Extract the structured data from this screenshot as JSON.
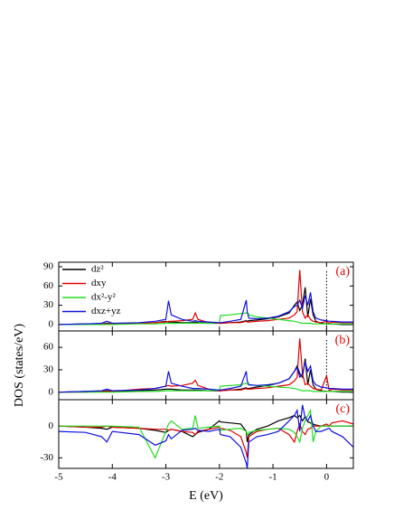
{
  "chart_data": [
    {
      "type": "line",
      "label": "(a)",
      "xlim": [
        -5,
        0.5
      ],
      "xticks": [
        -5,
        -4,
        -3,
        -2,
        -1,
        0
      ],
      "ylim": [
        -10,
        97
      ],
      "yticks": [
        0,
        30,
        60,
        90
      ],
      "fermi_level": 0,
      "x": [
        -5,
        -4.5,
        -4.2,
        -4.1,
        -4,
        -3.5,
        -3.2,
        -3,
        -2.95,
        -2.9,
        -2.7,
        -2.5,
        -2.45,
        -2.4,
        -2.2,
        -2,
        -1.98,
        -1.8,
        -1.6,
        -1.5,
        -1.48,
        -1.45,
        -1.3,
        -1.1,
        -0.9,
        -0.7,
        -0.6,
        -0.55,
        -0.5,
        -0.45,
        -0.4,
        -0.35,
        -0.3,
        -0.25,
        -0.2,
        -0.1,
        0,
        0.05,
        0.1,
        0.3,
        0.5
      ],
      "series": [
        {
          "name": "dz²",
          "color": "#000000",
          "values": [
            0,
            1,
            1,
            2,
            1,
            2,
            3,
            5,
            4,
            4,
            3,
            3,
            4,
            3,
            2,
            2,
            2,
            3,
            4,
            6,
            5,
            6,
            7,
            9,
            12,
            18,
            30,
            35,
            22,
            30,
            58,
            12,
            40,
            15,
            5,
            2,
            1,
            1,
            1,
            0,
            0
          ]
        },
        {
          "name": "dxy",
          "color": "#e00000",
          "values": [
            0,
            0,
            1,
            1,
            1,
            2,
            3,
            4,
            5,
            5,
            6,
            8,
            18,
            8,
            3,
            2,
            2,
            3,
            3,
            5,
            4,
            4,
            5,
            6,
            8,
            10,
            15,
            20,
            85,
            20,
            10,
            15,
            8,
            5,
            4,
            3,
            5,
            2,
            4,
            3,
            3
          ]
        },
        {
          "name": "dx²-y²",
          "color": "#22dd22",
          "values": [
            0,
            0,
            0,
            0,
            0,
            1,
            1,
            2,
            2,
            2,
            2,
            2,
            2,
            2,
            2,
            3,
            14,
            15,
            17,
            18,
            18,
            15,
            12,
            10,
            8,
            6,
            5,
            4,
            3,
            2,
            2,
            2,
            2,
            1,
            1,
            1,
            1,
            1,
            1,
            1,
            1
          ]
        },
        {
          "name": "dxz+yz",
          "color": "#1010e0",
          "values": [
            0,
            1,
            2,
            5,
            2,
            3,
            5,
            8,
            37,
            15,
            8,
            5,
            6,
            5,
            4,
            3,
            3,
            5,
            8,
            38,
            20,
            10,
            9,
            10,
            13,
            20,
            28,
            30,
            38,
            25,
            45,
            30,
            50,
            20,
            10,
            7,
            6,
            5,
            5,
            4,
            4
          ]
        }
      ]
    },
    {
      "type": "line",
      "label": "(b)",
      "y_label": "DOS (states/eV)",
      "xlim": [
        -5,
        0.5
      ],
      "xticks": [
        -5,
        -4,
        -3,
        -2,
        -1,
        0
      ],
      "ylim": [
        -10,
        82
      ],
      "yticks": [
        0,
        30,
        60
      ],
      "fermi_level": 0,
      "x": [
        -5,
        -4.5,
        -4.2,
        -4.1,
        -4,
        -3.5,
        -3.2,
        -3,
        -2.95,
        -2.9,
        -2.7,
        -2.5,
        -2.45,
        -2.4,
        -2.2,
        -2,
        -1.98,
        -1.8,
        -1.6,
        -1.5,
        -1.48,
        -1.45,
        -1.3,
        -1.1,
        -0.9,
        -0.7,
        -0.6,
        -0.55,
        -0.5,
        -0.45,
        -0.4,
        -0.35,
        -0.3,
        -0.25,
        -0.2,
        -0.1,
        0,
        0.05,
        0.1,
        0.3,
        0.5
      ],
      "series": [
        {
          "color": "#000000",
          "values": [
            0,
            1,
            1,
            2,
            1,
            2,
            3,
            4,
            4,
            4,
            3,
            3,
            3,
            3,
            2,
            2,
            2,
            3,
            4,
            6,
            5,
            5,
            7,
            9,
            12,
            18,
            28,
            35,
            25,
            20,
            45,
            10,
            30,
            10,
            4,
            2,
            1,
            1,
            1,
            0,
            0
          ]
        },
        {
          "color": "#e00000",
          "values": [
            0,
            0,
            1,
            1,
            1,
            4,
            5,
            8,
            9,
            8,
            9,
            12,
            16,
            9,
            4,
            2,
            2,
            3,
            3,
            5,
            4,
            4,
            5,
            6,
            8,
            10,
            15,
            20,
            72,
            25,
            10,
            12,
            8,
            5,
            4,
            3,
            22,
            2,
            4,
            3,
            3
          ]
        },
        {
          "color": "#22dd22",
          "values": [
            0,
            0,
            0,
            0,
            0,
            1,
            1,
            2,
            2,
            2,
            2,
            2,
            2,
            2,
            2,
            3,
            8,
            9,
            10,
            12,
            11,
            10,
            9,
            8,
            7,
            6,
            5,
            4,
            3,
            2,
            2,
            2,
            2,
            1,
            1,
            1,
            1,
            1,
            1,
            1,
            1
          ]
        },
        {
          "color": "#1010e0",
          "values": [
            0,
            1,
            2,
            4,
            2,
            3,
            5,
            8,
            28,
            12,
            8,
            5,
            5,
            5,
            4,
            3,
            3,
            5,
            8,
            28,
            15,
            10,
            9,
            10,
            12,
            18,
            28,
            33,
            20,
            25,
            40,
            28,
            35,
            15,
            10,
            7,
            6,
            5,
            5,
            4,
            4
          ]
        }
      ]
    },
    {
      "type": "line",
      "label": "(c)",
      "x_label": "E (eV)",
      "xlim": [
        -5,
        0.5
      ],
      "xticks": [
        -5,
        -4,
        -3,
        -2,
        -1,
        0
      ],
      "ylim": [
        -40,
        25
      ],
      "yticks": [
        -30,
        0
      ],
      "x": [
        -5,
        -4.5,
        -4.2,
        -4.1,
        -4,
        -3.5,
        -3.2,
        -3,
        -2.95,
        -2.9,
        -2.7,
        -2.5,
        -2.45,
        -2.4,
        -2.2,
        -2,
        -1.98,
        -1.8,
        -1.6,
        -1.5,
        -1.48,
        -1.45,
        -1.3,
        -1.1,
        -0.9,
        -0.7,
        -0.6,
        -0.55,
        -0.5,
        -0.45,
        -0.4,
        -0.35,
        -0.3,
        -0.25,
        -0.2,
        -0.1,
        0,
        0.05,
        0.1,
        0.3,
        0.5
      ],
      "series": [
        {
          "color": "#000000",
          "values": [
            0,
            -1,
            -2,
            -3,
            -1,
            -2,
            -4,
            -6,
            -4,
            -3,
            -5,
            -10,
            -8,
            -6,
            -3,
            5,
            4,
            3,
            2,
            -5,
            -15,
            -8,
            -3,
            0,
            5,
            8,
            10,
            8,
            10,
            5,
            9,
            4,
            3,
            2,
            1,
            0,
            0,
            0,
            0,
            0,
            0
          ]
        },
        {
          "color": "#e00000",
          "values": [
            0,
            -1,
            -1,
            0,
            -1,
            -2,
            -3,
            -3,
            -4,
            -3,
            -5,
            -6,
            -8,
            -5,
            -3,
            -1,
            -2,
            -4,
            -10,
            -25,
            -30,
            -10,
            -5,
            -3,
            -2,
            -8,
            -15,
            -5,
            2,
            -5,
            -8,
            -3,
            -2,
            0,
            0,
            0,
            2,
            0,
            3,
            5,
            2
          ]
        },
        {
          "color": "#22dd22",
          "values": [
            0,
            0,
            0,
            0,
            0,
            -1,
            -30,
            -5,
            2,
            5,
            -3,
            -2,
            10,
            -2,
            -1,
            0,
            -4,
            -3,
            -2,
            -5,
            -8,
            -6,
            -4,
            -3,
            -2,
            -3,
            -6,
            -10,
            -15,
            -2,
            5,
            10,
            15,
            -15,
            -5,
            0,
            0,
            0,
            0,
            0,
            0
          ]
        },
        {
          "color": "#1010e0",
          "values": [
            -5,
            -6,
            -10,
            -15,
            -5,
            -8,
            -18,
            -14,
            -8,
            -12,
            -4,
            -3,
            -2,
            -4,
            -5,
            -3,
            -8,
            -10,
            -20,
            -35,
            -40,
            -15,
            -10,
            -8,
            -5,
            5,
            10,
            15,
            -5,
            20,
            8,
            5,
            10,
            0,
            -5,
            -5,
            -3,
            -2,
            -5,
            -10,
            -20
          ]
        }
      ]
    }
  ]
}
